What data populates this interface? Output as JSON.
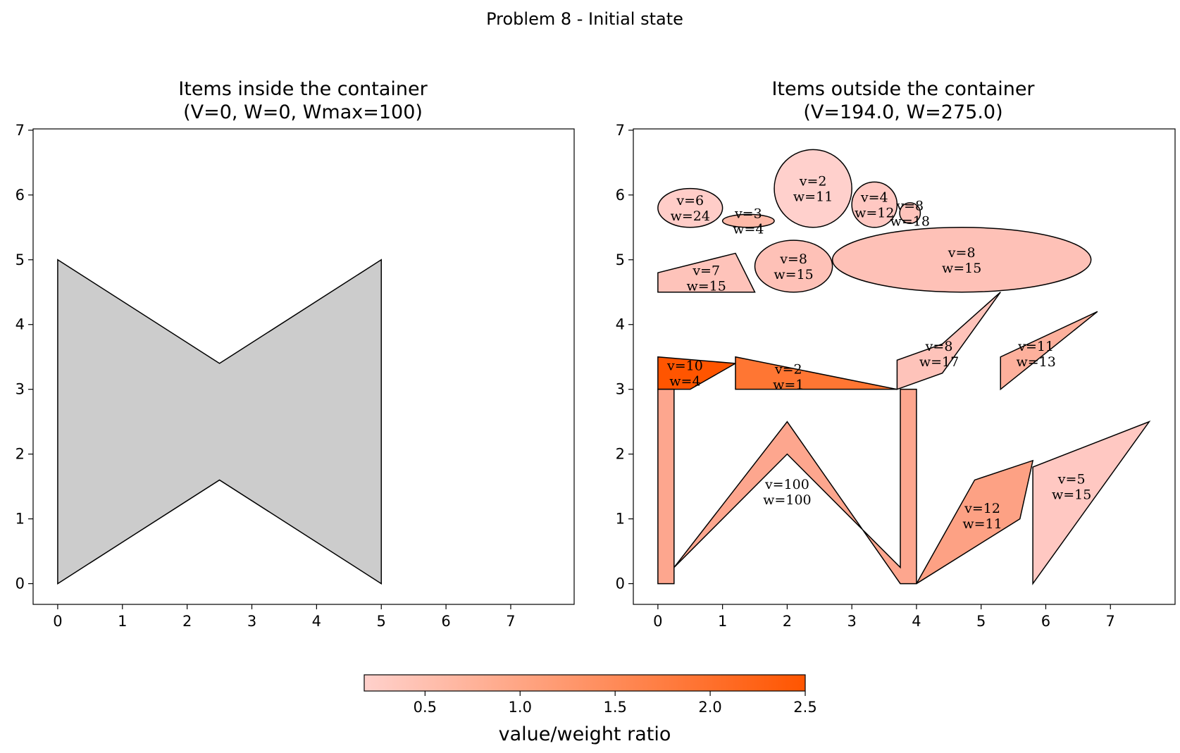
{
  "figure": {
    "suptitle": "Problem 8 - Initial state"
  },
  "chart_data": [
    {
      "type": "polygon-plot",
      "title_line1": "Items inside the container",
      "title_line2": "(V=0, W=0, Wmax=100)",
      "xlim": [
        -0.38,
        7.98
      ],
      "ylim": [
        -0.32,
        7.02
      ],
      "xticks": [
        0,
        1,
        2,
        3,
        4,
        5,
        6,
        7
      ],
      "yticks": [
        0,
        1,
        2,
        3,
        4,
        5,
        6,
        7
      ],
      "grid": false,
      "container": {
        "fill": "#cccccc",
        "points": [
          [
            0,
            0
          ],
          [
            2.5,
            1.6
          ],
          [
            5,
            0
          ],
          [
            5,
            5
          ],
          [
            2.5,
            3.4
          ],
          [
            0,
            5
          ]
        ]
      },
      "items": []
    },
    {
      "type": "polygon-plot",
      "title_line1": "Items outside the container",
      "title_line2": "(V=194.0, W=275.0)",
      "xlim": [
        -0.38,
        8.0
      ],
      "ylim": [
        -0.32,
        7.02
      ],
      "xticks": [
        0,
        1,
        2,
        3,
        4,
        5,
        6,
        7
      ],
      "yticks": [
        0,
        1,
        2,
        3,
        4,
        5,
        6,
        7
      ],
      "grid": false,
      "items": [
        {
          "shape": "ellipse",
          "cx": 0.5,
          "cy": 5.8,
          "rx": 0.5,
          "ry": 0.3,
          "v": "v=6",
          "w": "w=24",
          "ratio": 0.25,
          "fill": "#ffcdc8"
        },
        {
          "shape": "ellipse",
          "cx": 1.4,
          "cy": 5.6,
          "rx": 0.4,
          "ry": 0.1,
          "v": "v=3",
          "w": "w=4",
          "ratio": 0.75,
          "fill": "#fdb9a8",
          "label_y": 5.6
        },
        {
          "shape": "ellipse",
          "cx": 2.4,
          "cy": 6.1,
          "rx": 0.6,
          "ry": 0.6,
          "v": "v=2",
          "w": "w=11",
          "ratio": 0.18,
          "fill": "#ffd0cc"
        },
        {
          "shape": "ellipse",
          "cx": 3.35,
          "cy": 5.85,
          "rx": 0.35,
          "ry": 0.35,
          "v": "v=4",
          "w": "w=12",
          "ratio": 0.33,
          "fill": "#ffc8c2"
        },
        {
          "shape": "ellipse",
          "cx": 3.9,
          "cy": 5.72,
          "rx": 0.16,
          "ry": 0.16,
          "v": "v=8",
          "w": "w=18",
          "ratio": 0.44,
          "fill": "#fec3bb"
        },
        {
          "shape": "ellipse",
          "cx": 2.1,
          "cy": 4.9,
          "rx": 0.6,
          "ry": 0.4,
          "v": "v=8",
          "w": "w=15",
          "ratio": 0.53,
          "fill": "#fec1b7"
        },
        {
          "shape": "ellipse",
          "cx": 4.7,
          "cy": 5.0,
          "rx": 2.0,
          "ry": 0.5,
          "v": "v=8",
          "w": "w=15",
          "ratio": 0.53,
          "fill": "#fec1b7"
        },
        {
          "shape": "polygon",
          "points": [
            [
              0,
              4.5
            ],
            [
              1.5,
              4.5
            ],
            [
              1.2,
              5.1
            ],
            [
              0,
              4.8
            ]
          ],
          "v": "v=7",
          "w": "w=15",
          "ratio": 0.47,
          "fill": "#fec3ba",
          "label_x": 0.75,
          "label_y": 4.72
        },
        {
          "shape": "polygon",
          "points": [
            [
              0,
              3.0
            ],
            [
              0.5,
              3.0
            ],
            [
              1.2,
              3.4
            ],
            [
              0,
              3.5
            ]
          ],
          "v": "v=10",
          "w": "w=4",
          "ratio": 2.5,
          "fill": "#ff5500",
          "label_x": 0.42,
          "label_y": 3.25
        },
        {
          "shape": "polygon",
          "points": [
            [
              1.2,
              3.0
            ],
            [
              3.7,
              3.0
            ],
            [
              1.2,
              3.5
            ]
          ],
          "v": "v=2",
          "w": "w=1",
          "ratio": 2.0,
          "fill": "#ff7633",
          "label_x": 2.02,
          "label_y": 3.2
        },
        {
          "shape": "polygon",
          "points": [
            [
              3.7,
              3.0
            ],
            [
              4.4,
              3.25
            ],
            [
              5.3,
              4.5
            ],
            [
              4.4,
              3.7
            ],
            [
              3.7,
              3.45
            ]
          ],
          "v": "v=8",
          "w": "w=17",
          "ratio": 0.47,
          "fill": "#fec3ba",
          "label_x": 4.35,
          "label_y": 3.55
        },
        {
          "shape": "polygon",
          "points": [
            [
              5.3,
              3.0
            ],
            [
              6.8,
              4.2
            ],
            [
              5.3,
              3.5
            ]
          ],
          "v": "v=11",
          "w": "w=13",
          "ratio": 0.85,
          "fill": "#fdb09c",
          "label_x": 5.85,
          "label_y": 3.55
        },
        {
          "shape": "polygon",
          "points": [
            [
              0,
              0
            ],
            [
              0.25,
              0
            ],
            [
              0.25,
              0.25
            ],
            [
              2,
              2.0
            ],
            [
              3.75,
              0.25
            ],
            [
              3.75,
              3.0
            ],
            [
              4.0,
              3.0
            ],
            [
              4.0,
              0
            ],
            [
              3.75,
              0
            ],
            [
              2,
              2.5
            ],
            [
              0.25,
              0.25
            ],
            [
              0.25,
              3.0
            ],
            [
              0,
              3.0
            ]
          ],
          "v": "v=100",
          "w": "w=100",
          "ratio": 1.0,
          "fill": "#fda68e",
          "label_x": 2.0,
          "label_y": 1.42,
          "wshape": true
        },
        {
          "shape": "polygon",
          "points": [
            [
              4.0,
              0
            ],
            [
              5.6,
              1.0
            ],
            [
              5.8,
              1.9
            ],
            [
              4.9,
              1.6
            ]
          ],
          "v": "v=12",
          "w": "w=11",
          "ratio": 1.09,
          "fill": "#fda184",
          "label_x": 5.02,
          "label_y": 1.05
        },
        {
          "shape": "polygon",
          "points": [
            [
              5.8,
              0
            ],
            [
              7.6,
              2.5
            ],
            [
              5.8,
              1.8
            ]
          ],
          "v": "v=5",
          "w": "w=15",
          "ratio": 0.33,
          "fill": "#ffc8c2",
          "label_x": 6.4,
          "label_y": 1.5
        }
      ]
    }
  ],
  "colorbar": {
    "label": "value/weight ratio",
    "min": 0.18,
    "max": 2.5,
    "ticks": [
      "0.5",
      "1.0",
      "1.5",
      "2.0",
      "2.5"
    ],
    "tick_values": [
      0.5,
      1.0,
      1.5,
      2.0,
      2.5
    ],
    "color_low": "#ffd1cc",
    "color_high": "#ff5500"
  }
}
